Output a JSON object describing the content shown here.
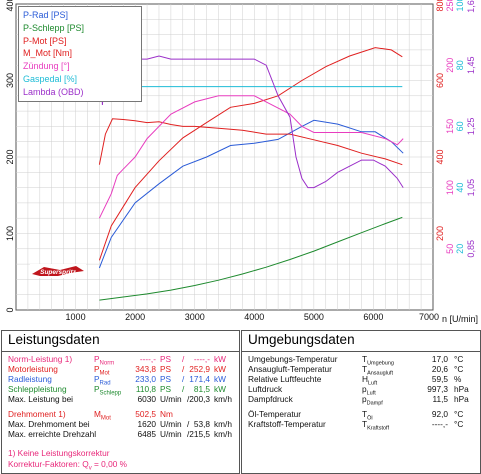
{
  "chart_data": {
    "type": "line",
    "xlabel": "n [U/min]",
    "xlim": [
      0,
      7000
    ],
    "x_ticks": [
      "1000",
      "2000",
      "3000",
      "4000",
      "5000",
      "6000",
      "7000"
    ],
    "left_axis": {
      "lim": [
        0,
        400
      ],
      "ticks": [
        "0",
        "100",
        "200",
        "300",
        "400"
      ]
    },
    "right_axes": [
      {
        "color": "#e02020",
        "lim": [
          0,
          800
        ],
        "ticks": [
          "200",
          "400",
          "600",
          "800"
        ]
      },
      {
        "color": "#e83dbf",
        "lim": [
          0,
          250
        ],
        "ticks": [
          "50",
          "100",
          "150",
          "200",
          "250"
        ]
      },
      {
        "color": "#1ebcd6",
        "lim": [
          0,
          100
        ],
        "ticks": [
          "20",
          "40",
          "60",
          "80",
          "100"
        ]
      },
      {
        "color": "#9b2fc9",
        "lim": [
          0.65,
          1.65
        ],
        "ticks": [
          "0,85",
          "1,05",
          "1,25",
          "1,45",
          "1,65"
        ]
      }
    ],
    "legend": [
      {
        "label": "P-Rad [PS]",
        "color": "#2a5bd7"
      },
      {
        "label": "P-Schlepp [PS]",
        "color": "#1e8a2e"
      },
      {
        "label": "P-Mot [PS]",
        "color": "#e02020"
      },
      {
        "label": "M_Mot [Nm]",
        "color": "#e02020"
      },
      {
        "label": "Zündung [°]",
        "color": "#e83dbf"
      },
      {
        "label": "Gaspedal [%]",
        "color": "#1ebcd6"
      },
      {
        "label": "Lambda (OBD)",
        "color": "#9b2fc9"
      }
    ],
    "series": [
      {
        "name": "P-Rad [PS]",
        "color": "#2a5bd7",
        "axis": "left",
        "x": [
          1400,
          1600,
          2000,
          2400,
          2800,
          3200,
          3600,
          4000,
          4400,
          4800,
          5000,
          5400,
          5800,
          6030,
          6300,
          6500
        ],
        "y": [
          55,
          95,
          140,
          165,
          188,
          200,
          215,
          218,
          223,
          240,
          248,
          243,
          233,
          233,
          220,
          205
        ]
      },
      {
        "name": "P-Schlepp [PS]",
        "color": "#1e8a2e",
        "axis": "left",
        "x": [
          1400,
          1800,
          2200,
          2600,
          3000,
          3400,
          3800,
          4200,
          4600,
          5000,
          5400,
          5800,
          6200,
          6485
        ],
        "y": [
          13,
          17,
          21,
          26,
          32,
          39,
          47,
          56,
          66,
          77,
          89,
          101,
          113,
          121
        ]
      },
      {
        "name": "P-Mot [PS]",
        "color": "#e02020",
        "axis": "left",
        "x": [
          1400,
          1600,
          2000,
          2400,
          2800,
          3200,
          3600,
          4000,
          4400,
          4800,
          5200,
          5600,
          6030,
          6300,
          6485
        ],
        "y": [
          65,
          110,
          160,
          195,
          225,
          245,
          265,
          270,
          280,
          300,
          318,
          332,
          343,
          340,
          331
        ]
      },
      {
        "name": "M_Mot [Nm]",
        "color": "#e02020",
        "axis": "r1",
        "x": [
          1400,
          1500,
          1620,
          1800,
          2000,
          2200,
          2400,
          2600,
          2800,
          3000,
          3400,
          3800,
          4200,
          4600,
          5000,
          5400,
          5800,
          6200,
          6485
        ],
        "y": [
          380,
          460,
          500,
          498,
          495,
          490,
          492,
          485,
          480,
          480,
          475,
          470,
          460,
          460,
          445,
          430,
          410,
          395,
          380
        ]
      },
      {
        "name": "Zündung [°]",
        "color": "#e83dbf",
        "axis": "r2",
        "x": [
          1400,
          1600,
          1700,
          1800,
          2000,
          2200,
          2400,
          2600,
          3000,
          3400,
          4000,
          4200,
          4600,
          4800,
          5000,
          5400,
          5800,
          6200,
          6400,
          6500
        ],
        "y": [
          75,
          95,
          110,
          115,
          125,
          140,
          150,
          160,
          170,
          175,
          175,
          170,
          160,
          150,
          145,
          145,
          145,
          140,
          135,
          140
        ]
      },
      {
        "name": "Gaspedal [%]",
        "color": "#1ebcd6",
        "axis": "r3",
        "x": [
          1400,
          1500,
          2000,
          3000,
          4000,
          5000,
          6000,
          6485
        ],
        "y": [
          72,
          73,
          73,
          73,
          73,
          73,
          73,
          73
        ]
      },
      {
        "name": "Lambda (OBD)",
        "color": "#9b2fc9",
        "axis": "r4",
        "x": [
          1400,
          1450,
          1500,
          1600,
          1700,
          1800,
          2000,
          2200,
          2400,
          2600,
          2800,
          3000,
          3400,
          3800,
          4000,
          4200,
          4400,
          4600,
          4700,
          4800,
          4900,
          5000,
          5200,
          5400,
          5600,
          5800,
          6000,
          6200,
          6400,
          6500
        ],
        "y": [
          1.58,
          1.32,
          1.47,
          1.47,
          1.48,
          1.48,
          1.47,
          1.47,
          1.48,
          1.47,
          1.47,
          1.47,
          1.47,
          1.47,
          1.47,
          1.45,
          1.35,
          1.28,
          1.15,
          1.08,
          1.05,
          1.05,
          1.07,
          1.1,
          1.12,
          1.14,
          1.14,
          1.12,
          1.08,
          1.05
        ]
      }
    ]
  },
  "logo_text": "Superspritz",
  "left_panel": {
    "title": "Leistungsdaten",
    "rows": [
      {
        "label": "Norm-Leistung 1)",
        "sym": "P",
        "sub": "Norm",
        "v1": "----,-",
        "u1": "PS",
        "sep": "/",
        "v2": "----,-",
        "u2": "kW",
        "cls": "pink"
      },
      {
        "label": "Motorleistung",
        "sym": "P",
        "sub": "Mot",
        "v1": "343,8",
        "u1": "PS",
        "sep": "/",
        "v2": "252,9",
        "u2": "kW",
        "cls": "red"
      },
      {
        "label": "Radleistung",
        "sym": "P",
        "sub": "Rad",
        "v1": "233,0",
        "u1": "PS",
        "sep": "/",
        "v2": "171,4",
        "u2": "kW",
        "cls": "blue"
      },
      {
        "label": "Schleppleistung",
        "sym": "P",
        "sub": "Schlepp",
        "v1": "110,8",
        "u1": "PS",
        "sep": "/",
        "v2": "81,5",
        "u2": "kW",
        "cls": "green"
      },
      {
        "label": "Max. Leistung bei",
        "sym": "",
        "sub": "",
        "v1": "6030",
        "u1": "U/min",
        "sep": "/",
        "v2": "200,3",
        "u2": "km/h",
        "cls": "blk"
      },
      {
        "label": "Drehmoment 1)",
        "sym": "M",
        "sub": "Mot",
        "v1": "502,5",
        "u1": "Nm",
        "sep": "",
        "v2": "",
        "u2": "",
        "cls": "red"
      },
      {
        "label": "Max. Drehmoment bei",
        "sym": "",
        "sub": "",
        "v1": "1620",
        "u1": "U/min",
        "sep": "/",
        "v2": "53,8",
        "u2": "km/h",
        "cls": "blk"
      },
      {
        "label": "Max. erreichte Drehzahl",
        "sym": "",
        "sub": "",
        "v1": "6485",
        "u1": "U/min",
        "sep": "/",
        "v2": "215,5",
        "u2": "km/h",
        "cls": "blk"
      }
    ],
    "footnote1": "1) Keine Leistungskorrektur",
    "footnote2": "Korrektur-Faktoren: Q",
    "footnote2_sub": "v",
    "footnote2_val": " = 0,00 %"
  },
  "right_panel": {
    "title": "Umgebungsdaten",
    "rows": [
      {
        "label": "Umgebungs-Temperatur",
        "sym": "T",
        "sub": "Umgebung",
        "val": "17,0",
        "unit": "°C"
      },
      {
        "label": "Ansaugluft-Temperatur",
        "sym": "T",
        "sub": "Ansaugluft",
        "val": "20,6",
        "unit": "°C"
      },
      {
        "label": "Relative Luftfeuchte",
        "sym": "H",
        "sub": "Luft",
        "val": "59,5",
        "unit": "%"
      },
      {
        "label": "Luftdruck",
        "sym": "p",
        "sub": "Luft",
        "val": "997,3",
        "unit": "hPa"
      },
      {
        "label": "Dampfdruck",
        "sym": "p",
        "sub": "Dampf",
        "val": "11,5",
        "unit": "hPa"
      },
      {
        "label": "Öl-Temperatur",
        "sym": "T",
        "sub": "Öl",
        "val": "92,0",
        "unit": "°C"
      },
      {
        "label": "Kraftstoff-Temperatur",
        "sym": "T",
        "sub": "Kraftstoff",
        "val": "----,-",
        "unit": "°C"
      }
    ]
  }
}
